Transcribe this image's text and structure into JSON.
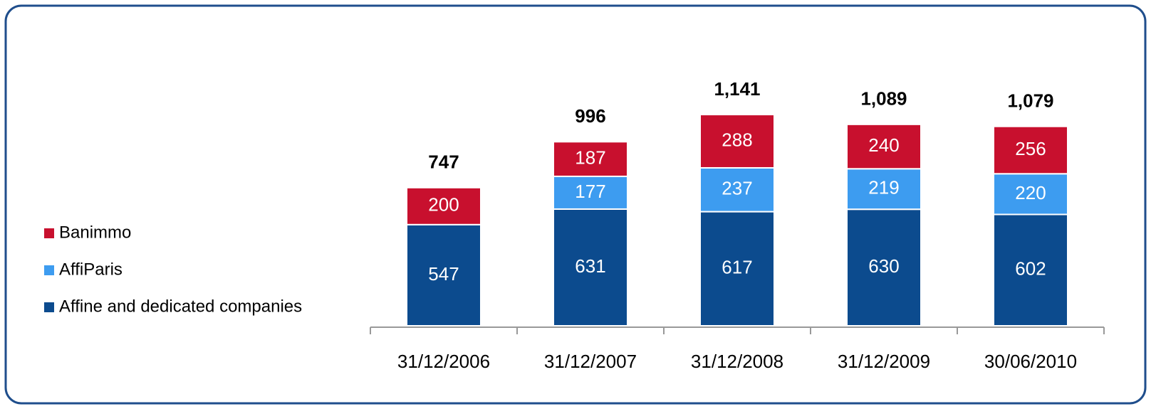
{
  "chart_data": {
    "type": "stacked_bar",
    "categories": [
      "31/12/2006",
      "31/12/2007",
      "31/12/2008",
      "31/12/2009",
      "30/06/2010"
    ],
    "series": [
      {
        "name": "Affine and dedicated companies",
        "color": "#0c4b8e",
        "values": [
          547,
          631,
          617,
          630,
          602
        ]
      },
      {
        "name": "AffiParis",
        "color": "#3d9cf0",
        "values": [
          null,
          177,
          237,
          219,
          220
        ]
      },
      {
        "name": "Banimmo",
        "color": "#c8102e",
        "values": [
          200,
          187,
          288,
          240,
          256
        ]
      }
    ],
    "totals": {
      "values": [
        747,
        996,
        1141,
        1089,
        1079
      ],
      "value_labels": [
        "747",
        "996",
        "1,141",
        "1,089",
        "1,079"
      ]
    },
    "legend": "left"
  }
}
